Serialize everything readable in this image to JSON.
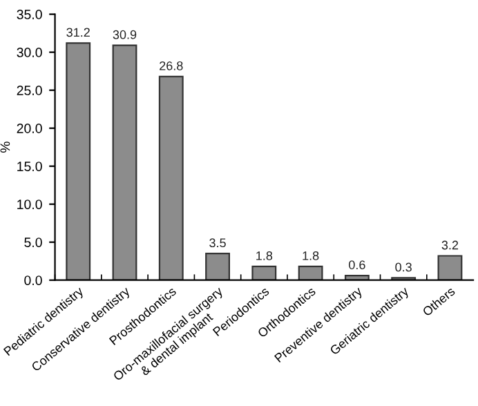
{
  "chart_data": {
    "type": "bar",
    "ylabel": "%",
    "categories": [
      "Pediatric dentistry",
      "Conservative dentistry",
      "Prosthodontics",
      "Oro-maxillofacial surgery\n& dental implant",
      "Periodontics",
      "Orthodontics",
      "Preventive dentistry",
      "Geriatric dentistry",
      "Others"
    ],
    "values": [
      31.2,
      30.9,
      26.8,
      3.5,
      1.8,
      1.8,
      0.6,
      0.3,
      3.2
    ],
    "color": "#8c8c8c",
    "ylim": [
      0,
      35
    ],
    "yticks": [
      {
        "value": 0,
        "label": "0.0"
      },
      {
        "value": 5,
        "label": "5.0"
      },
      {
        "value": 10,
        "label": "10.0"
      },
      {
        "value": 15,
        "label": "15.0"
      },
      {
        "value": 20,
        "label": "20.0"
      },
      {
        "value": 25,
        "label": "25.0"
      },
      {
        "value": 30,
        "label": "30.0"
      },
      {
        "value": 35,
        "label": "35.0"
      }
    ],
    "data_labels": true,
    "grid": false,
    "legend": false
  }
}
